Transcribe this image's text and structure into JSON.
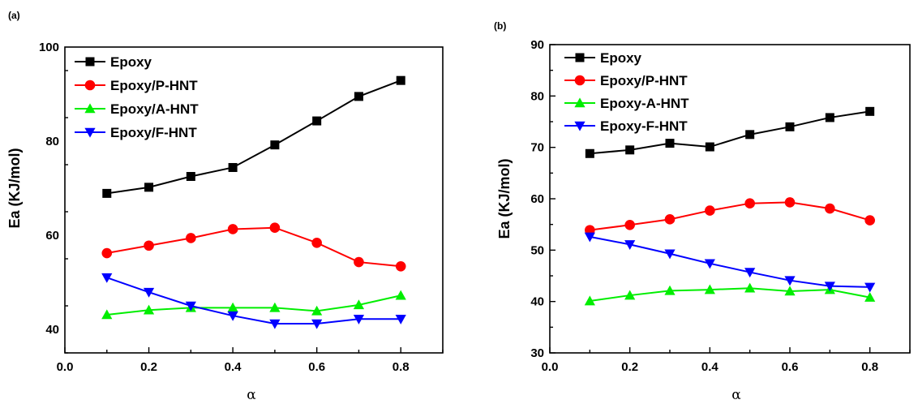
{
  "chart_data": [
    {
      "panel_label": "(a)",
      "type": "line",
      "xlabel": "α",
      "ylabel": "Ea (KJ/mol)",
      "xlim": [
        0.0,
        0.9
      ],
      "ylim": [
        35,
        100
      ],
      "x_ticks": [
        "0.0",
        "0.2",
        "0.4",
        "0.6",
        "0.8"
      ],
      "y_ticks": [
        "40",
        "60",
        "80",
        "100"
      ],
      "x": [
        0.1,
        0.2,
        0.3,
        0.4,
        0.5,
        0.6,
        0.7,
        0.8
      ],
      "legend_position": "top-left",
      "series": [
        {
          "name": "Epoxy",
          "marker": "square",
          "color": "#000000",
          "values": [
            68.9,
            70.2,
            72.5,
            74.4,
            79.2,
            84.3,
            89.5,
            92.9
          ]
        },
        {
          "name": "Epoxy/P-HNT",
          "marker": "circle",
          "color": "#ff0000",
          "values": [
            56.2,
            57.8,
            59.4,
            61.3,
            61.6,
            58.4,
            54.3,
            53.4
          ]
        },
        {
          "name": "Epoxy/A-HNT",
          "marker": "triangle-up",
          "color": "#00ee00",
          "values": [
            43.1,
            44.1,
            44.6,
            44.6,
            44.6,
            43.9,
            45.2,
            47.2
          ]
        },
        {
          "name": "Epoxy/F-HNT",
          "marker": "triangle-down",
          "color": "#0000ff",
          "values": [
            51.0,
            47.9,
            45.0,
            42.9,
            41.2,
            41.2,
            42.2,
            42.2
          ]
        }
      ]
    },
    {
      "panel_label": "(b)",
      "type": "line",
      "xlabel": "α",
      "ylabel": "Ea (KJ/mol)",
      "xlim": [
        0.0,
        0.9
      ],
      "ylim": [
        30,
        90
      ],
      "x_ticks": [
        "0.0",
        "0.2",
        "0.4",
        "0.6",
        "0.8"
      ],
      "y_ticks": [
        "30",
        "40",
        "50",
        "60",
        "70",
        "80",
        "90"
      ],
      "x": [
        0.1,
        0.2,
        0.3,
        0.4,
        0.5,
        0.6,
        0.7,
        0.8
      ],
      "legend_position": "top-left",
      "series": [
        {
          "name": "Epoxy",
          "marker": "square",
          "color": "#000000",
          "values": [
            68.8,
            69.5,
            70.8,
            70.1,
            72.5,
            74.0,
            75.8,
            77.0
          ]
        },
        {
          "name": "Epoxy/P-HNT",
          "marker": "circle",
          "color": "#ff0000",
          "values": [
            53.9,
            54.9,
            56.0,
            57.7,
            59.1,
            59.3,
            58.1,
            55.8
          ]
        },
        {
          "name": "Epoxy-A-HNT",
          "marker": "triangle-up",
          "color": "#00ee00",
          "values": [
            40.1,
            41.2,
            42.1,
            42.3,
            42.6,
            42.0,
            42.3,
            40.8
          ]
        },
        {
          "name": "Epoxy-F-HNT",
          "marker": "triangle-down",
          "color": "#0000ff",
          "values": [
            52.6,
            51.1,
            49.3,
            47.4,
            45.7,
            44.1,
            43.0,
            42.8
          ]
        }
      ]
    }
  ]
}
